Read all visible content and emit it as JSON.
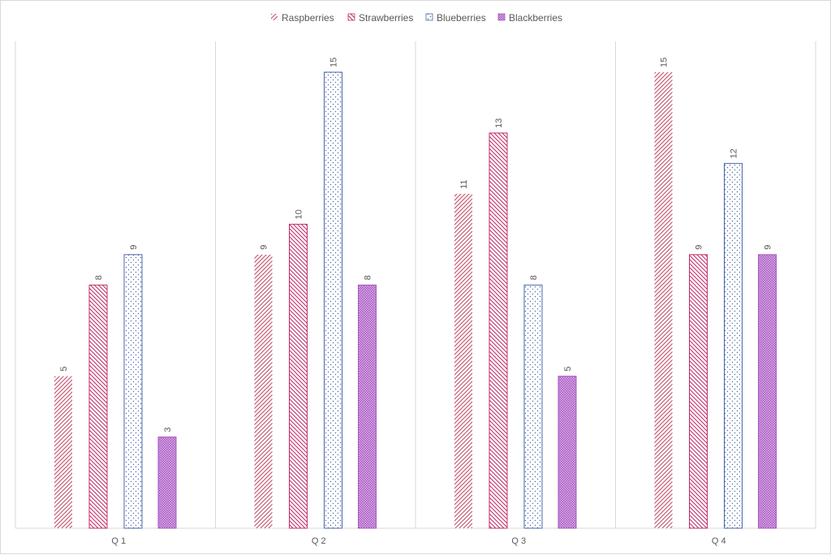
{
  "chart_data": {
    "type": "bar",
    "title": "",
    "xlabel": "",
    "ylabel": "",
    "categories": [
      "Q1",
      "Q2",
      "Q3",
      "Q4"
    ],
    "category_display": [
      "Q 1",
      "Q 2",
      "Q 3",
      "Q 4"
    ],
    "ylim": [
      0,
      16
    ],
    "grid": false,
    "legend_position": "top",
    "data_label_orientation": "vertical",
    "series": [
      {
        "name": "Raspberries",
        "values": [
          5,
          9,
          11,
          15
        ],
        "color": "#c0506b",
        "pattern": "diag-up"
      },
      {
        "name": "Strawberries",
        "values": [
          8,
          10,
          13,
          9
        ],
        "color": "#c0306a",
        "pattern": "diag-down"
      },
      {
        "name": "Blueberries",
        "values": [
          9,
          15,
          8,
          12
        ],
        "color": "#4a67a8",
        "pattern": "dots"
      },
      {
        "name": "Blackberries",
        "values": [
          3,
          8,
          5,
          9
        ],
        "color": "#a855c0",
        "pattern": "dense"
      }
    ]
  }
}
